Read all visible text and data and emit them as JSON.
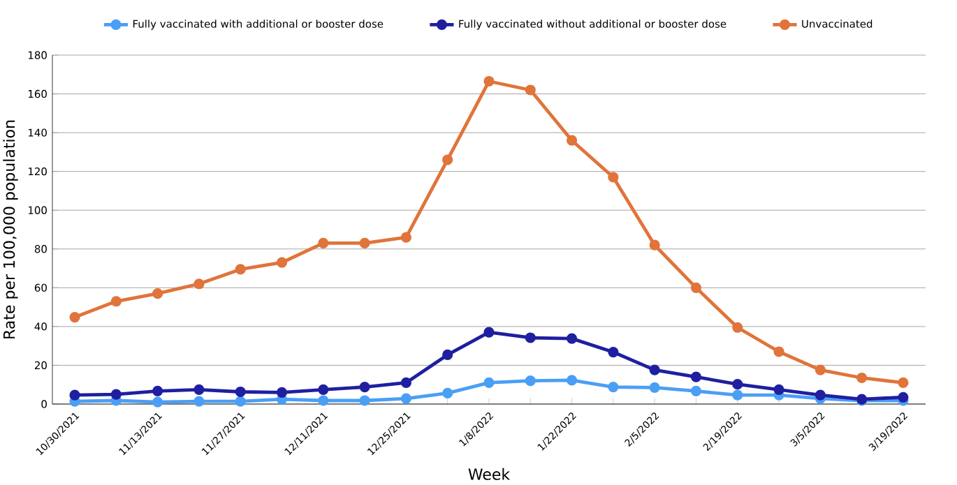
{
  "chart_data": {
    "type": "line",
    "xlabel": "Week",
    "ylabel": "Rate per 100,000 population",
    "categories": [
      "10/30/2021",
      null,
      "11/13/2021",
      null,
      "11/27/2021",
      null,
      "12/11/2021",
      null,
      "12/25/2021",
      null,
      "1/8/2022",
      null,
      "1/22/2022",
      null,
      "2/5/2022",
      null,
      "2/19/2022",
      null,
      "3/5/2022",
      null,
      "3/19/2022"
    ],
    "series": [
      {
        "name": "Fully vaccinated with additional or booster dose",
        "color": "#4a9ff5",
        "values": [
          1.4,
          1.8,
          1,
          1.4,
          1.4,
          2.5,
          1.8,
          1.8,
          2.8,
          5.6,
          11,
          12,
          12.3,
          8.8,
          8.5,
          6.7,
          4.6,
          4.6,
          2.8,
          1.8,
          1.8
        ]
      },
      {
        "name": "Fully vaccinated without additional or booster dose",
        "color": "#1f1fa0",
        "values": [
          4.6,
          5,
          6.7,
          7.4,
          6.3,
          6,
          7.4,
          8.8,
          11,
          25.4,
          37,
          34.2,
          33.8,
          26.8,
          17.6,
          14,
          10.2,
          7.4,
          4.6,
          2.5,
          3.5
        ]
      },
      {
        "name": "Unvaccinated",
        "color": "#e0743a",
        "values": [
          44.8,
          53,
          57,
          62,
          69.5,
          73,
          83,
          83,
          86,
          126,
          166.5,
          162,
          136,
          117,
          82,
          60,
          39.5,
          27,
          17.6,
          13.5,
          11
        ]
      }
    ],
    "ylim": [
      0,
      180
    ],
    "yticks": [
      0,
      20,
      40,
      60,
      80,
      100,
      120,
      140,
      160,
      180
    ],
    "grid": "y",
    "legend": "top",
    "marker": "circle"
  }
}
